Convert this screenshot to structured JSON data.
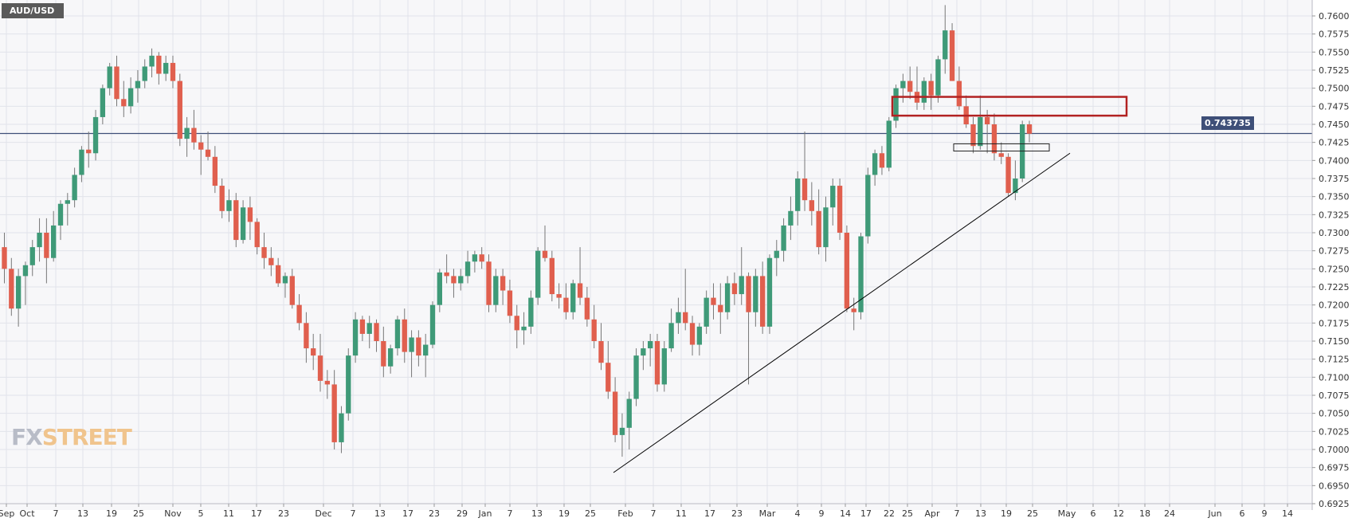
{
  "header": {
    "symbol": "AUD/USD"
  },
  "watermark": {
    "part1": "FX",
    "part2": "STREET"
  },
  "current_price": {
    "label": "0.743735",
    "value": 0.743735
  },
  "colors": {
    "up": "#3f9a78",
    "down": "#e05f4e",
    "wick": "#777777",
    "grid": "#e2e3ea",
    "price_line": "#3e4f78",
    "zone_box": "#b22222",
    "trendline": "#000000"
  },
  "chart_data": {
    "type": "candlestick",
    "title": "AUD/USD",
    "xlabel": "",
    "ylabel": "",
    "ylim": [
      0.6925,
      0.7615
    ],
    "y_ticks": [
      "0.7600",
      "0.7575",
      "0.7550",
      "0.7525",
      "0.7500",
      "0.7475",
      "0.7450",
      "0.7425",
      "0.7400",
      "0.7375",
      "0.7350",
      "0.7325",
      "0.7300",
      "0.7275",
      "0.7250",
      "0.7225",
      "0.7200",
      "0.7175",
      "0.7150",
      "0.7125",
      "0.7100",
      "0.7075",
      "0.7050",
      "0.7025",
      "0.7000",
      "0.6975",
      "0.6950",
      "0.6925"
    ],
    "x_labels": [
      "Sep",
      "Oct",
      "7",
      "13",
      "19",
      "25",
      "Nov",
      "5",
      "11",
      "17",
      "23",
      "Dec",
      "7",
      "13",
      "17",
      "23",
      "29",
      "Jan",
      "7",
      "13",
      "19",
      "25",
      "Feb",
      "7",
      "11",
      "17",
      "23",
      "Mar",
      "4",
      "9",
      "14",
      "17",
      "22",
      "25",
      "Apr",
      "7",
      "13",
      "19",
      "25",
      "May",
      "6",
      "12",
      "18",
      "24",
      "Jun",
      "6",
      "9",
      "14"
    ],
    "grid": true,
    "candles_ohlc": [
      [
        0.728,
        0.73,
        0.723,
        0.725
      ],
      [
        0.725,
        0.7265,
        0.7185,
        0.7195
      ],
      [
        0.7195,
        0.725,
        0.717,
        0.724
      ],
      [
        0.724,
        0.726,
        0.72,
        0.7255
      ],
      [
        0.7255,
        0.729,
        0.724,
        0.728
      ],
      [
        0.728,
        0.732,
        0.726,
        0.73
      ],
      [
        0.73,
        0.732,
        0.723,
        0.7265
      ],
      [
        0.7265,
        0.733,
        0.726,
        0.731
      ],
      [
        0.731,
        0.7345,
        0.729,
        0.734
      ],
      [
        0.734,
        0.7355,
        0.731,
        0.7345
      ],
      [
        0.7345,
        0.739,
        0.7335,
        0.738
      ],
      [
        0.738,
        0.742,
        0.737,
        0.7415
      ],
      [
        0.7415,
        0.744,
        0.739,
        0.741
      ],
      [
        0.741,
        0.747,
        0.74,
        0.746
      ],
      [
        0.746,
        0.7505,
        0.745,
        0.75
      ],
      [
        0.75,
        0.7535,
        0.749,
        0.753
      ],
      [
        0.753,
        0.7545,
        0.7475,
        0.7485
      ],
      [
        0.7485,
        0.751,
        0.746,
        0.7475
      ],
      [
        0.7475,
        0.7515,
        0.7465,
        0.75
      ],
      [
        0.75,
        0.7525,
        0.748,
        0.751
      ],
      [
        0.751,
        0.754,
        0.75,
        0.753
      ],
      [
        0.753,
        0.7555,
        0.7515,
        0.7545
      ],
      [
        0.7545,
        0.755,
        0.7505,
        0.752
      ],
      [
        0.752,
        0.7545,
        0.751,
        0.7535
      ],
      [
        0.7535,
        0.7545,
        0.75,
        0.751
      ],
      [
        0.751,
        0.752,
        0.742,
        0.743
      ],
      [
        0.743,
        0.746,
        0.7405,
        0.7445
      ],
      [
        0.7445,
        0.747,
        0.7415,
        0.7425
      ],
      [
        0.7425,
        0.7435,
        0.738,
        0.7415
      ],
      [
        0.7415,
        0.744,
        0.74,
        0.7405
      ],
      [
        0.7405,
        0.742,
        0.7355,
        0.7365
      ],
      [
        0.7365,
        0.7375,
        0.732,
        0.733
      ],
      [
        0.733,
        0.736,
        0.7315,
        0.7345
      ],
      [
        0.7345,
        0.7355,
        0.728,
        0.729
      ],
      [
        0.729,
        0.7345,
        0.7285,
        0.7335
      ],
      [
        0.7335,
        0.735,
        0.729,
        0.7315
      ],
      [
        0.7315,
        0.732,
        0.727,
        0.728
      ],
      [
        0.728,
        0.73,
        0.725,
        0.7265
      ],
      [
        0.7265,
        0.728,
        0.724,
        0.7255
      ],
      [
        0.7255,
        0.7265,
        0.7225,
        0.723
      ],
      [
        0.723,
        0.7245,
        0.721,
        0.724
      ],
      [
        0.724,
        0.725,
        0.7195,
        0.72
      ],
      [
        0.72,
        0.7215,
        0.7165,
        0.7175
      ],
      [
        0.7175,
        0.719,
        0.712,
        0.714
      ],
      [
        0.714,
        0.716,
        0.711,
        0.713
      ],
      [
        0.713,
        0.716,
        0.708,
        0.7095
      ],
      [
        0.7095,
        0.711,
        0.707,
        0.709
      ],
      [
        0.709,
        0.711,
        0.7,
        0.701
      ],
      [
        0.701,
        0.706,
        0.6995,
        0.705
      ],
      [
        0.705,
        0.714,
        0.704,
        0.713
      ],
      [
        0.713,
        0.719,
        0.712,
        0.718
      ],
      [
        0.718,
        0.7185,
        0.715,
        0.716
      ],
      [
        0.716,
        0.7185,
        0.714,
        0.7175
      ],
      [
        0.7175,
        0.718,
        0.7135,
        0.715
      ],
      [
        0.715,
        0.717,
        0.71,
        0.7115
      ],
      [
        0.7115,
        0.7145,
        0.7105,
        0.714
      ],
      [
        0.714,
        0.7185,
        0.713,
        0.718
      ],
      [
        0.718,
        0.7195,
        0.712,
        0.7135
      ],
      [
        0.7135,
        0.7165,
        0.71,
        0.7155
      ],
      [
        0.7155,
        0.7165,
        0.7115,
        0.713
      ],
      [
        0.713,
        0.716,
        0.71,
        0.7145
      ],
      [
        0.7145,
        0.7205,
        0.714,
        0.72
      ],
      [
        0.72,
        0.725,
        0.719,
        0.7245
      ],
      [
        0.7245,
        0.727,
        0.723,
        0.724
      ],
      [
        0.724,
        0.725,
        0.721,
        0.723
      ],
      [
        0.723,
        0.725,
        0.722,
        0.724
      ],
      [
        0.724,
        0.7275,
        0.723,
        0.726
      ],
      [
        0.726,
        0.7275,
        0.7245,
        0.727
      ],
      [
        0.727,
        0.728,
        0.725,
        0.726
      ],
      [
        0.726,
        0.727,
        0.719,
        0.72
      ],
      [
        0.72,
        0.725,
        0.719,
        0.724
      ],
      [
        0.724,
        0.725,
        0.72,
        0.722
      ],
      [
        0.722,
        0.7235,
        0.7175,
        0.7185
      ],
      [
        0.7185,
        0.72,
        0.714,
        0.7165
      ],
      [
        0.7165,
        0.719,
        0.7145,
        0.717
      ],
      [
        0.717,
        0.722,
        0.716,
        0.721
      ],
      [
        0.721,
        0.728,
        0.72,
        0.7275
      ],
      [
        0.7275,
        0.731,
        0.726,
        0.7265
      ],
      [
        0.7265,
        0.7275,
        0.7205,
        0.7215
      ],
      [
        0.7215,
        0.723,
        0.7195,
        0.721
      ],
      [
        0.721,
        0.723,
        0.718,
        0.719
      ],
      [
        0.719,
        0.7235,
        0.718,
        0.723
      ],
      [
        0.723,
        0.728,
        0.72,
        0.721
      ],
      [
        0.721,
        0.7225,
        0.717,
        0.718
      ],
      [
        0.718,
        0.72,
        0.714,
        0.715
      ],
      [
        0.715,
        0.7175,
        0.711,
        0.712
      ],
      [
        0.712,
        0.715,
        0.707,
        0.708
      ],
      [
        0.708,
        0.71,
        0.701,
        0.702
      ],
      [
        0.702,
        0.705,
        0.699,
        0.703
      ],
      [
        0.703,
        0.708,
        0.7,
        0.707
      ],
      [
        0.707,
        0.714,
        0.706,
        0.713
      ],
      [
        0.713,
        0.715,
        0.711,
        0.714
      ],
      [
        0.714,
        0.716,
        0.7115,
        0.715
      ],
      [
        0.715,
        0.716,
        0.708,
        0.709
      ],
      [
        0.709,
        0.715,
        0.708,
        0.714
      ],
      [
        0.714,
        0.7195,
        0.7135,
        0.7175
      ],
      [
        0.7175,
        0.721,
        0.716,
        0.719
      ],
      [
        0.719,
        0.725,
        0.7165,
        0.7175
      ],
      [
        0.7175,
        0.7185,
        0.713,
        0.7145
      ],
      [
        0.7145,
        0.7175,
        0.713,
        0.717
      ],
      [
        0.717,
        0.722,
        0.716,
        0.721
      ],
      [
        0.721,
        0.723,
        0.718,
        0.72
      ],
      [
        0.72,
        0.723,
        0.716,
        0.719
      ],
      [
        0.719,
        0.724,
        0.718,
        0.723
      ],
      [
        0.723,
        0.7245,
        0.72,
        0.7215
      ],
      [
        0.7215,
        0.728,
        0.72,
        0.724
      ],
      [
        0.724,
        0.7245,
        0.709,
        0.719
      ],
      [
        0.719,
        0.725,
        0.717,
        0.724
      ],
      [
        0.724,
        0.726,
        0.716,
        0.717
      ],
      [
        0.717,
        0.727,
        0.716,
        0.7265
      ],
      [
        0.7265,
        0.729,
        0.724,
        0.7275
      ],
      [
        0.7275,
        0.732,
        0.726,
        0.731
      ],
      [
        0.731,
        0.735,
        0.729,
        0.733
      ],
      [
        0.733,
        0.7385,
        0.731,
        0.7375
      ],
      [
        0.7375,
        0.744,
        0.733,
        0.7345
      ],
      [
        0.7345,
        0.737,
        0.731,
        0.733
      ],
      [
        0.733,
        0.736,
        0.727,
        0.728
      ],
      [
        0.728,
        0.735,
        0.726,
        0.7335
      ],
      [
        0.7335,
        0.7375,
        0.731,
        0.7365
      ],
      [
        0.7365,
        0.7375,
        0.729,
        0.73
      ],
      [
        0.73,
        0.731,
        0.719,
        0.7195
      ],
      [
        0.7195,
        0.721,
        0.7165,
        0.719
      ],
      [
        0.719,
        0.73,
        0.718,
        0.7295
      ],
      [
        0.7295,
        0.739,
        0.7285,
        0.738
      ],
      [
        0.738,
        0.7415,
        0.7365,
        0.741
      ],
      [
        0.741,
        0.742,
        0.738,
        0.739
      ],
      [
        0.739,
        0.746,
        0.7385,
        0.7455
      ],
      [
        0.7455,
        0.7505,
        0.7445,
        0.75
      ],
      [
        0.75,
        0.752,
        0.748,
        0.751
      ],
      [
        0.751,
        0.753,
        0.7485,
        0.7495
      ],
      [
        0.7495,
        0.753,
        0.747,
        0.748
      ],
      [
        0.748,
        0.7515,
        0.747,
        0.751
      ],
      [
        0.751,
        0.752,
        0.747,
        0.749
      ],
      [
        0.749,
        0.7545,
        0.748,
        0.754
      ],
      [
        0.754,
        0.7615,
        0.752,
        0.758
      ],
      [
        0.758,
        0.759,
        0.751,
        0.751
      ],
      [
        0.751,
        0.753,
        0.747,
        0.7475
      ],
      [
        0.7475,
        0.749,
        0.7445,
        0.745
      ],
      [
        0.745,
        0.746,
        0.741,
        0.742
      ],
      [
        0.742,
        0.749,
        0.7415,
        0.746
      ],
      [
        0.746,
        0.747,
        0.741,
        0.745
      ],
      [
        0.745,
        0.7465,
        0.74,
        0.741
      ],
      [
        0.741,
        0.7425,
        0.7395,
        0.7405
      ],
      [
        0.7405,
        0.741,
        0.735,
        0.7355
      ],
      [
        0.7355,
        0.74,
        0.7345,
        0.7375
      ],
      [
        0.7375,
        0.7455,
        0.737,
        0.745
      ],
      [
        0.745,
        0.7455,
        0.7425,
        0.7437
      ]
    ],
    "annotations": {
      "resistance_zone": {
        "y_top": 0.7488,
        "y_bottom": 0.7462
      },
      "small_box": {
        "y_top": 0.7423,
        "y_bottom": 0.7413
      },
      "trendline": {
        "start_price": 0.6968,
        "end_price": 0.741
      },
      "horizontal_line": 0.743735
    }
  }
}
